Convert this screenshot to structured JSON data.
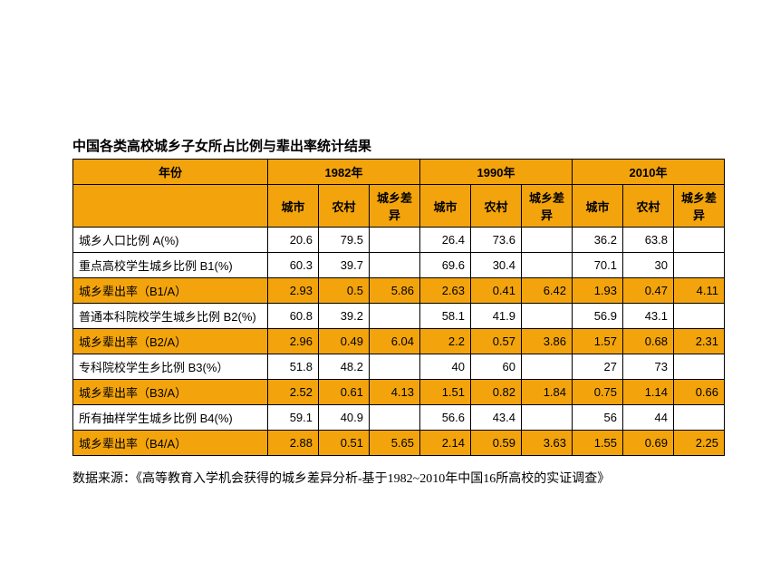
{
  "title": "中国各类高校城乡子女所占比例与辈出率统计结果",
  "header": {
    "year_label": "年份",
    "years": [
      "1982年",
      "1990年",
      "2010年"
    ],
    "sub": [
      "城市",
      "农村",
      "城乡差异"
    ]
  },
  "rows": [
    {
      "label": "城乡人口比例 A(%)",
      "bg": "white",
      "vals": [
        "20.6",
        "79.5",
        "",
        "26.4",
        "73.6",
        "",
        "36.2",
        "63.8",
        ""
      ]
    },
    {
      "label": "重点高校学生城乡比例 B1(%)",
      "bg": "white",
      "vals": [
        "60.3",
        "39.7",
        "",
        "69.6",
        "30.4",
        "",
        "70.1",
        "30",
        ""
      ]
    },
    {
      "label": "城乡辈出率（B1/A）",
      "bg": "orange",
      "vals": [
        "2.93",
        "0.5",
        "5.86",
        "2.63",
        "0.41",
        "6.42",
        "1.93",
        "0.47",
        "4.11"
      ]
    },
    {
      "label": "普通本科院校学生城乡比例 B2(%)",
      "bg": "white",
      "vals": [
        "60.8",
        "39.2",
        "",
        "58.1",
        "41.9",
        "",
        "56.9",
        "43.1",
        ""
      ]
    },
    {
      "label": "城乡辈出率（B2/A）",
      "bg": "orange",
      "vals": [
        "2.96",
        "0.49",
        "6.04",
        "2.2",
        "0.57",
        "3.86",
        "1.57",
        "0.68",
        "2.31"
      ]
    },
    {
      "label": "专科院校学生乡比例 B3(%）",
      "bg": "white",
      "vals": [
        "51.8",
        "48.2",
        "",
        "40",
        "60",
        "",
        "27",
        "73",
        ""
      ]
    },
    {
      "label": "城乡辈出率（B3/A）",
      "bg": "orange",
      "vals": [
        "2.52",
        "0.61",
        "4.13",
        "1.51",
        "0.82",
        "1.84",
        "0.75",
        "1.14",
        "0.66"
      ]
    },
    {
      "label": "所有抽样学生城乡比例 B4(%)",
      "bg": "white",
      "vals": [
        "59.1",
        "40.9",
        "",
        "56.6",
        "43.4",
        "",
        "56",
        "44",
        ""
      ]
    },
    {
      "label": "城乡辈出率（B4/A）",
      "bg": "orange",
      "vals": [
        "2.88",
        "0.51",
        "5.65",
        "2.14",
        "0.59",
        "3.63",
        "1.55",
        "0.69",
        "2.25"
      ]
    }
  ],
  "source": "数据来源：《高等教育入学机会获得的城乡差异分析-基于1982~2010年中国16所高校的实证调查》",
  "colors": {
    "orange": "#f3a40c",
    "white": "#ffffff",
    "border": "#000000"
  }
}
